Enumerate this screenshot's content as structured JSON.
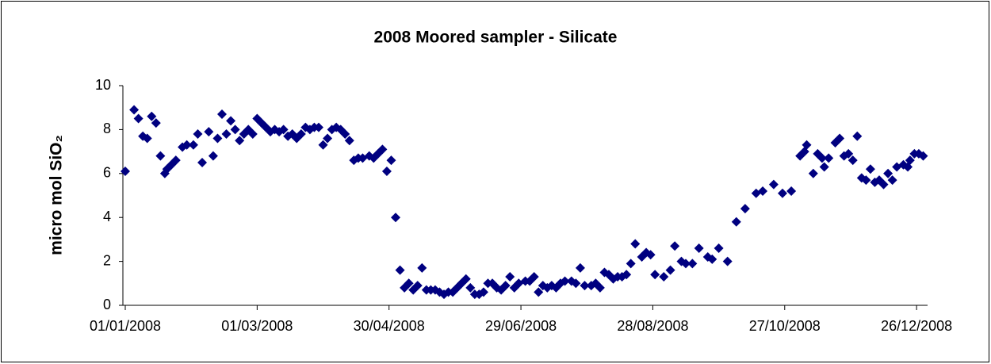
{
  "chart_data": {
    "type": "scatter",
    "title": "2008 Moored sampler - Silicate",
    "ylabel": "micro mol SiO₂",
    "color": "#000080",
    "xlim": [
      "2008-01-01",
      "2008-12-31"
    ],
    "xticks": [
      {
        "value": "2008-01-01",
        "label": "01/01/2008"
      },
      {
        "value": "2008-03-01",
        "label": "01/03/2008"
      },
      {
        "value": "2008-04-30",
        "label": "30/04/2008"
      },
      {
        "value": "2008-06-29",
        "label": "29/06/2008"
      },
      {
        "value": "2008-08-28",
        "label": "28/08/2008"
      },
      {
        "value": "2008-10-27",
        "label": "27/10/2008"
      },
      {
        "value": "2008-12-26",
        "label": "26/12/2008"
      }
    ],
    "ylim": [
      0,
      10
    ],
    "yticks": [
      0,
      2,
      4,
      6,
      8,
      10
    ],
    "x": [
      "2008-01-01",
      "2008-01-05",
      "2008-01-07",
      "2008-01-09",
      "2008-01-11",
      "2008-01-13",
      "2008-01-15",
      "2008-01-17",
      "2008-01-19",
      "2008-01-20",
      "2008-01-22",
      "2008-01-24",
      "2008-01-27",
      "2008-01-29",
      "2008-02-01",
      "2008-02-03",
      "2008-02-05",
      "2008-02-08",
      "2008-02-10",
      "2008-02-12",
      "2008-02-14",
      "2008-02-16",
      "2008-02-18",
      "2008-02-20",
      "2008-02-22",
      "2008-02-24",
      "2008-02-26",
      "2008-02-28",
      "2008-03-01",
      "2008-03-03",
      "2008-03-05",
      "2008-03-07",
      "2008-03-09",
      "2008-03-11",
      "2008-03-13",
      "2008-03-15",
      "2008-03-17",
      "2008-03-19",
      "2008-03-21",
      "2008-03-23",
      "2008-03-25",
      "2008-03-27",
      "2008-03-29",
      "2008-03-31",
      "2008-04-02",
      "2008-04-04",
      "2008-04-06",
      "2008-04-08",
      "2008-04-10",
      "2008-04-12",
      "2008-04-14",
      "2008-04-16",
      "2008-04-18",
      "2008-04-21",
      "2008-04-23",
      "2008-04-25",
      "2008-04-27",
      "2008-04-29",
      "2008-05-01",
      "2008-05-03",
      "2008-05-05",
      "2008-05-07",
      "2008-05-09",
      "2008-05-11",
      "2008-05-13",
      "2008-05-15",
      "2008-05-17",
      "2008-05-19",
      "2008-05-21",
      "2008-05-23",
      "2008-05-25",
      "2008-05-27",
      "2008-05-29",
      "2008-05-31",
      "2008-06-02",
      "2008-06-04",
      "2008-06-06",
      "2008-06-08",
      "2008-06-10",
      "2008-06-12",
      "2008-06-14",
      "2008-06-16",
      "2008-06-18",
      "2008-06-20",
      "2008-06-22",
      "2008-06-24",
      "2008-06-26",
      "2008-06-28",
      "2008-07-01",
      "2008-07-03",
      "2008-07-05",
      "2008-07-07",
      "2008-07-09",
      "2008-07-11",
      "2008-07-13",
      "2008-07-15",
      "2008-07-17",
      "2008-07-19",
      "2008-07-22",
      "2008-07-24",
      "2008-07-26",
      "2008-07-28",
      "2008-07-31",
      "2008-08-02",
      "2008-08-04",
      "2008-08-06",
      "2008-08-08",
      "2008-08-10",
      "2008-08-12",
      "2008-08-14",
      "2008-08-16",
      "2008-08-18",
      "2008-08-20",
      "2008-08-23",
      "2008-08-25",
      "2008-08-27",
      "2008-08-29",
      "2008-09-02",
      "2008-09-05",
      "2008-09-07",
      "2008-09-10",
      "2008-09-12",
      "2008-09-15",
      "2008-09-18",
      "2008-09-22",
      "2008-09-24",
      "2008-09-27",
      "2008-10-01",
      "2008-10-05",
      "2008-10-09",
      "2008-10-14",
      "2008-10-17",
      "2008-10-22",
      "2008-10-26",
      "2008-10-30",
      "2008-11-03",
      "2008-11-05",
      "2008-11-06",
      "2008-11-09",
      "2008-11-11",
      "2008-11-13",
      "2008-11-14",
      "2008-11-16",
      "2008-11-19",
      "2008-11-21",
      "2008-11-23",
      "2008-11-25",
      "2008-11-27",
      "2008-11-29",
      "2008-12-01",
      "2008-12-03",
      "2008-12-05",
      "2008-12-07",
      "2008-12-09",
      "2008-12-11",
      "2008-12-13",
      "2008-12-15",
      "2008-12-17",
      "2008-12-20",
      "2008-12-22",
      "2008-12-23",
      "2008-12-25",
      "2008-12-27",
      "2008-12-29"
    ],
    "values": [
      6.1,
      8.9,
      8.5,
      7.7,
      7.6,
      8.6,
      8.3,
      6.8,
      6.0,
      6.2,
      6.4,
      6.6,
      7.2,
      7.3,
      7.3,
      7.8,
      6.5,
      7.9,
      6.8,
      7.6,
      8.7,
      7.8,
      8.4,
      8.0,
      7.5,
      7.8,
      8.0,
      7.8,
      8.5,
      8.3,
      8.1,
      7.9,
      8.0,
      7.9,
      8.0,
      7.7,
      7.8,
      7.6,
      7.8,
      8.1,
      8.0,
      8.1,
      8.1,
      7.3,
      7.6,
      8.0,
      8.1,
      8.0,
      7.8,
      7.5,
      6.6,
      6.7,
      6.7,
      6.8,
      6.7,
      6.9,
      7.1,
      6.1,
      6.6,
      4.0,
      1.6,
      0.8,
      1.0,
      0.7,
      0.9,
      1.7,
      0.7,
      0.7,
      0.7,
      0.6,
      0.5,
      0.6,
      0.6,
      0.8,
      1.0,
      1.2,
      0.8,
      0.5,
      0.5,
      0.6,
      1.0,
      1.0,
      0.8,
      0.7,
      0.9,
      1.3,
      0.8,
      1.0,
      1.1,
      1.1,
      1.3,
      0.6,
      0.9,
      0.8,
      0.9,
      0.8,
      1.0,
      1.1,
      1.1,
      1.0,
      1.7,
      0.9,
      0.9,
      1.0,
      0.8,
      1.5,
      1.4,
      1.2,
      1.3,
      1.3,
      1.4,
      1.9,
      2.8,
      2.2,
      2.4,
      2.3,
      1.4,
      1.3,
      1.6,
      2.7,
      2.0,
      1.9,
      1.9,
      2.6,
      2.2,
      2.1,
      2.6,
      2.0,
      3.8,
      4.4,
      5.1,
      5.2,
      5.5,
      5.1,
      5.2,
      6.8,
      7.0,
      7.3,
      6.0,
      6.9,
      6.7,
      6.3,
      6.7,
      7.4,
      7.6,
      6.8,
      6.9,
      6.6,
      7.7,
      5.8,
      5.7,
      6.2,
      5.6,
      5.7,
      5.5,
      6.0,
      5.7,
      6.3,
      6.4,
      6.3,
      6.6,
      6.9,
      6.9,
      6.8
    ]
  }
}
